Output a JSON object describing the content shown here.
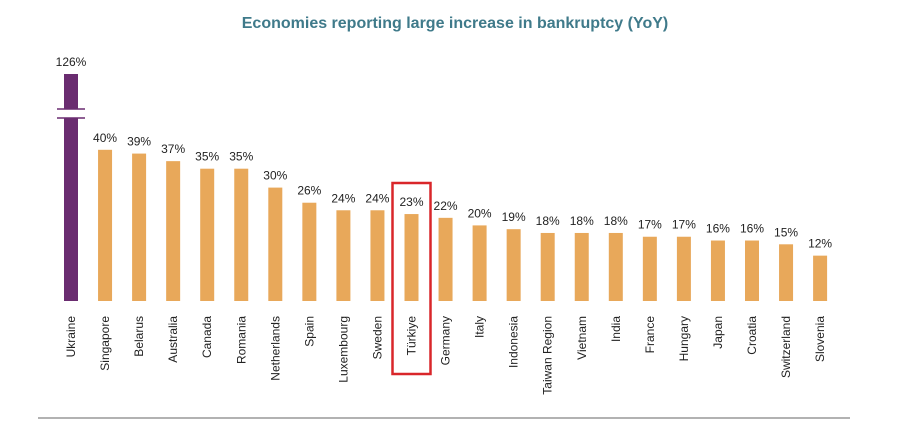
{
  "chart_data": {
    "type": "bar",
    "title": "Economies reporting large increase in bankruptcy (YoY)",
    "categories": [
      "Ukraine",
      "Singapore",
      "Belarus",
      "Australia",
      "Canada",
      "Romania",
      "Netherlands",
      "Spain",
      "Luxembourg",
      "Sweden",
      "Türkiye",
      "Germany",
      "Italy",
      "Indonesia",
      "Taiwan Region",
      "Vietnam",
      "India",
      "France",
      "Hungary",
      "Japan",
      "Croatia",
      "Switzerland",
      "Slovenia"
    ],
    "values": [
      126,
      40,
      39,
      37,
      35,
      35,
      30,
      26,
      24,
      24,
      23,
      22,
      20,
      19,
      18,
      18,
      18,
      17,
      17,
      16,
      16,
      15,
      12
    ],
    "value_labels": [
      "126%",
      "40%",
      "39%",
      "37%",
      "35%",
      "35%",
      "30%",
      "26%",
      "24%",
      "24%",
      "23%",
      "22%",
      "20%",
      "19%",
      "18%",
      "18%",
      "18%",
      "17%",
      "17%",
      "16%",
      "16%",
      "15%",
      "12%"
    ],
    "colors": [
      "#6a2c70",
      "#e8a85a",
      "#e8a85a",
      "#e8a85a",
      "#e8a85a",
      "#e8a85a",
      "#e8a85a",
      "#e8a85a",
      "#e8a85a",
      "#e8a85a",
      "#e8a85a",
      "#e8a85a",
      "#e8a85a",
      "#e8a85a",
      "#e8a85a",
      "#e8a85a",
      "#e8a85a",
      "#e8a85a",
      "#e8a85a",
      "#e8a85a",
      "#e8a85a",
      "#e8a85a",
      "#e8a85a"
    ],
    "highlight": "Türkiye",
    "highlight_color": "#d9262a",
    "axis_break": true
  }
}
